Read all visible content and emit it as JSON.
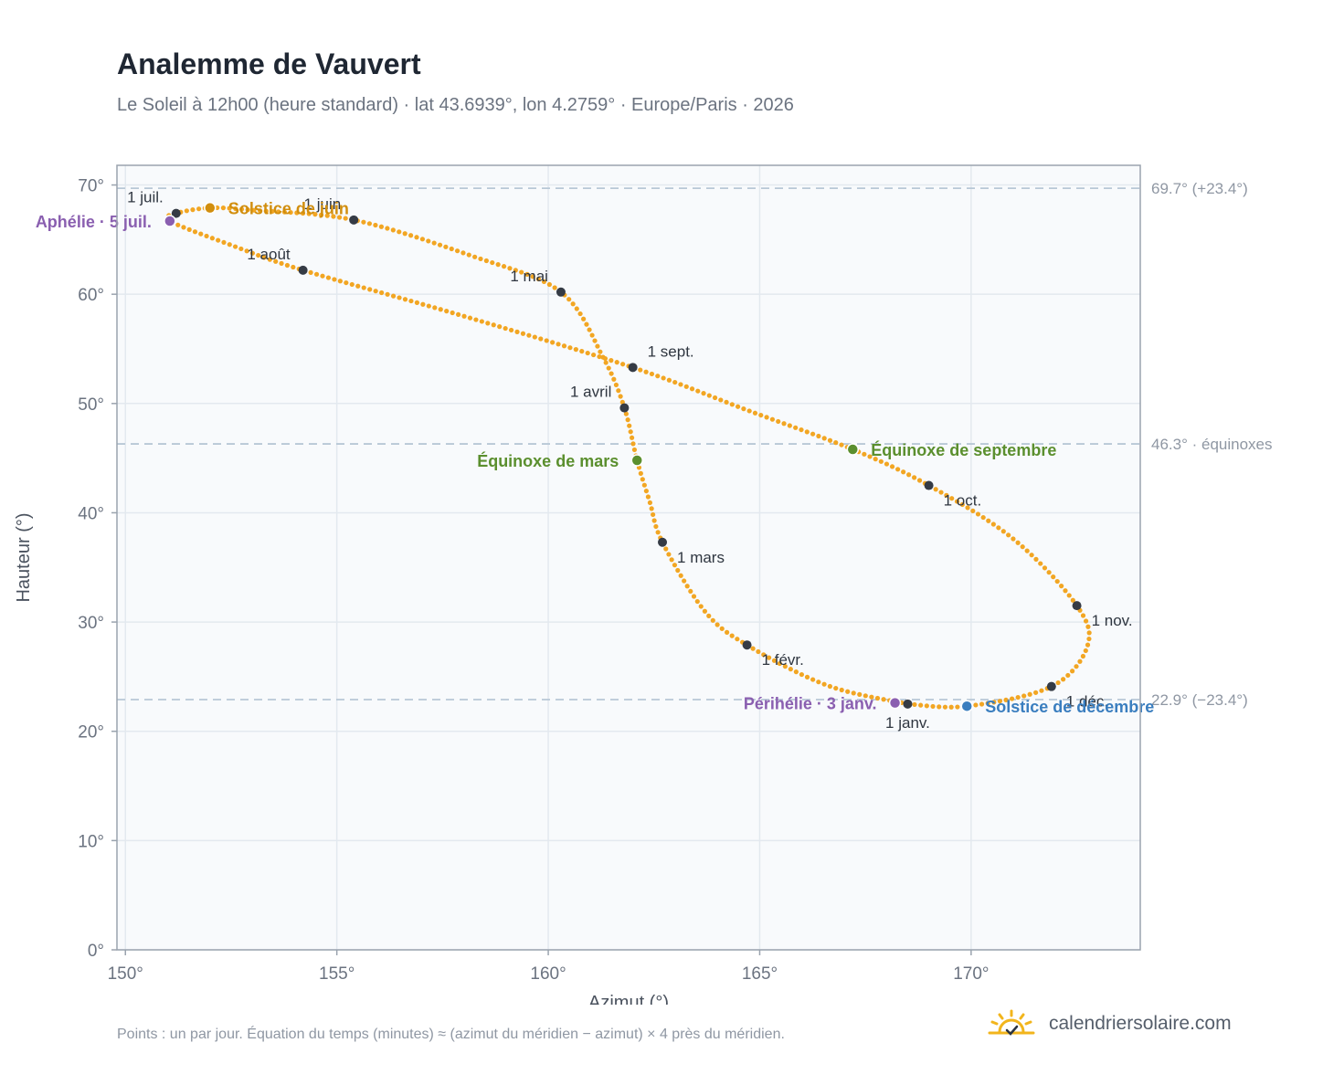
{
  "title": "Analemme de Vauvert",
  "subtitle": "Le Soleil à 12h00 (heure standard) · lat 43.6939°, lon 4.2759° · Europe/Paris · 2026",
  "footnote": "Points : un par jour. Équation du temps (minutes) ≈ (azimut du méridien − azimut) × 4 près du méridien.",
  "brand": {
    "name": "calendriersolaire.com",
    "logo_icon": "sun-check-icon"
  },
  "colors": {
    "curve": "#f2a623",
    "month_marker": "#353b45",
    "solstice_june": "#d18e0e",
    "solstice_december": "#3a7ebf",
    "equinox": "#5b8f2e",
    "apsis": "#8a5fb0",
    "reference_line": "#b8c8d6",
    "plot_background": "#f8fafc",
    "grid": "#e3e9ef"
  },
  "chart_data": {
    "type": "scatter",
    "xlabel": "Azimut (°)",
    "ylabel": "Hauteur (°)",
    "xlim": [
      149.8,
      174.0
    ],
    "ylim": [
      0,
      71.8
    ],
    "x_ticks": [
      {
        "value": 150,
        "label": "150°"
      },
      {
        "value": 155,
        "label": "155°"
      },
      {
        "value": 160,
        "label": "160°"
      },
      {
        "value": 165,
        "label": "165°"
      },
      {
        "value": 170,
        "label": "170°"
      }
    ],
    "y_ticks": [
      {
        "value": 0,
        "label": "0°"
      },
      {
        "value": 10,
        "label": "10°"
      },
      {
        "value": 20,
        "label": "20°"
      },
      {
        "value": 30,
        "label": "30°"
      },
      {
        "value": 40,
        "label": "40°"
      },
      {
        "value": 50,
        "label": "50°"
      },
      {
        "value": 60,
        "label": "60°"
      },
      {
        "value": 70,
        "label": "70°"
      }
    ],
    "grid": true,
    "reference_lines": [
      {
        "y": 69.7,
        "label": "69.7° (+23.4°)"
      },
      {
        "y": 46.3,
        "label": "46.3° · équinoxes"
      },
      {
        "y": 22.9,
        "label": "22.9° (−23.4°)"
      }
    ],
    "curve_points": [
      {
        "x": 168.5,
        "y": 22.5
      },
      {
        "x": 166.6,
        "y": 24.2
      },
      {
        "x": 164.7,
        "y": 27.9
      },
      {
        "x": 163.7,
        "y": 31.0
      },
      {
        "x": 162.7,
        "y": 37.3
      },
      {
        "x": 162.4,
        "y": 41.0
      },
      {
        "x": 162.1,
        "y": 44.8
      },
      {
        "x": 161.8,
        "y": 49.6
      },
      {
        "x": 161.3,
        "y": 54.2
      },
      {
        "x": 160.3,
        "y": 60.2
      },
      {
        "x": 158.2,
        "y": 63.5
      },
      {
        "x": 155.4,
        "y": 66.8
      },
      {
        "x": 153.0,
        "y": 67.7
      },
      {
        "x": 152.0,
        "y": 67.9
      },
      {
        "x": 151.2,
        "y": 67.4
      },
      {
        "x": 151.05,
        "y": 66.7
      },
      {
        "x": 152.5,
        "y": 64.5
      },
      {
        "x": 154.2,
        "y": 62.2
      },
      {
        "x": 158.0,
        "y": 58.0
      },
      {
        "x": 162.0,
        "y": 53.3
      },
      {
        "x": 164.7,
        "y": 49.4
      },
      {
        "x": 167.2,
        "y": 45.8
      },
      {
        "x": 169.0,
        "y": 42.5
      },
      {
        "x": 171.0,
        "y": 37.6
      },
      {
        "x": 172.5,
        "y": 31.5
      },
      {
        "x": 172.75,
        "y": 27.8
      },
      {
        "x": 171.9,
        "y": 24.1
      },
      {
        "x": 169.9,
        "y": 22.3
      },
      {
        "x": 168.5,
        "y": 22.5
      }
    ],
    "month_markers": [
      {
        "label": "1 janv.",
        "x": 168.5,
        "y": 22.5,
        "label_pos": "below"
      },
      {
        "label": "1 févr.",
        "x": 164.7,
        "y": 27.9,
        "label_pos": "below-right"
      },
      {
        "label": "1 mars",
        "x": 162.7,
        "y": 37.3,
        "label_pos": "below-right"
      },
      {
        "label": "1 avril",
        "x": 161.8,
        "y": 49.6,
        "label_pos": "above-left"
      },
      {
        "label": "1 mai",
        "x": 160.3,
        "y": 60.2,
        "label_pos": "above-left"
      },
      {
        "label": "1 juin",
        "x": 155.4,
        "y": 66.8,
        "label_pos": "above-left"
      },
      {
        "label": "1 juil.",
        "x": 151.2,
        "y": 67.4,
        "label_pos": "above-left"
      },
      {
        "label": "1 août",
        "x": 154.2,
        "y": 62.2,
        "label_pos": "above-left"
      },
      {
        "label": "1 sept.",
        "x": 162.0,
        "y": 53.3,
        "label_pos": "above-right"
      },
      {
        "label": "1 oct.",
        "x": 169.0,
        "y": 42.5,
        "label_pos": "below-right"
      },
      {
        "label": "1 nov.",
        "x": 172.5,
        "y": 31.5,
        "label_pos": "below-right"
      },
      {
        "label": "1 déc.",
        "x": 171.9,
        "y": 24.1,
        "label_pos": "below-right"
      }
    ],
    "events": [
      {
        "label": "Solstice de juin",
        "x": 152.0,
        "y": 67.9,
        "color_key": "solstice_june",
        "label_pos": "right"
      },
      {
        "label": "Aphélie · 5 juil.",
        "x": 151.05,
        "y": 66.7,
        "color_key": "apsis",
        "label_pos": "left"
      },
      {
        "label": "Équinoxe de mars",
        "x": 162.1,
        "y": 44.8,
        "color_key": "equinox",
        "label_pos": "left"
      },
      {
        "label": "Équinoxe de septembre",
        "x": 167.2,
        "y": 45.8,
        "color_key": "equinox",
        "label_pos": "right"
      },
      {
        "label": "Périhélie · 3 janv.",
        "x": 168.2,
        "y": 22.6,
        "color_key": "apsis",
        "label_pos": "left"
      },
      {
        "label": "Solstice de décembre",
        "x": 169.9,
        "y": 22.3,
        "color_key": "solstice_december",
        "label_pos": "right"
      }
    ]
  }
}
